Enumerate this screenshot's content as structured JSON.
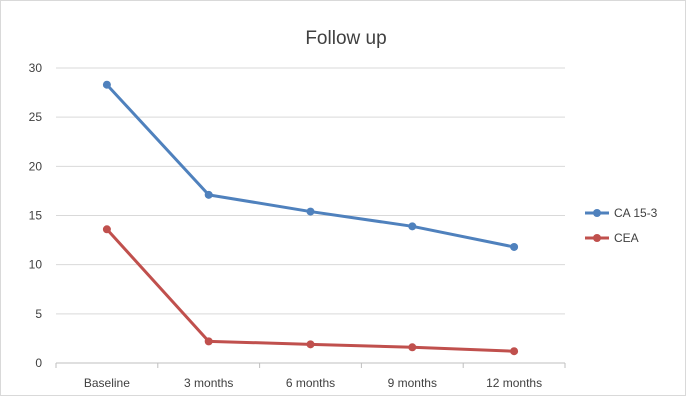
{
  "chart_data": {
    "type": "line",
    "title": "Follow up",
    "xlabel": "",
    "ylabel": "",
    "categories": [
      "Baseline",
      "3 months",
      "6 months",
      "9 months",
      "12 months"
    ],
    "ylim": [
      0,
      30
    ],
    "yticks": [
      0,
      5,
      10,
      15,
      20,
      25,
      30
    ],
    "grid": true,
    "legend_position": "right",
    "series": [
      {
        "name": "CA 15-3",
        "color": "#4f81bd",
        "values": [
          28.3,
          17.1,
          15.4,
          13.9,
          11.8
        ]
      },
      {
        "name": "CEA",
        "color": "#c0504d",
        "values": [
          13.6,
          2.2,
          1.9,
          1.6,
          1.2
        ]
      }
    ]
  }
}
